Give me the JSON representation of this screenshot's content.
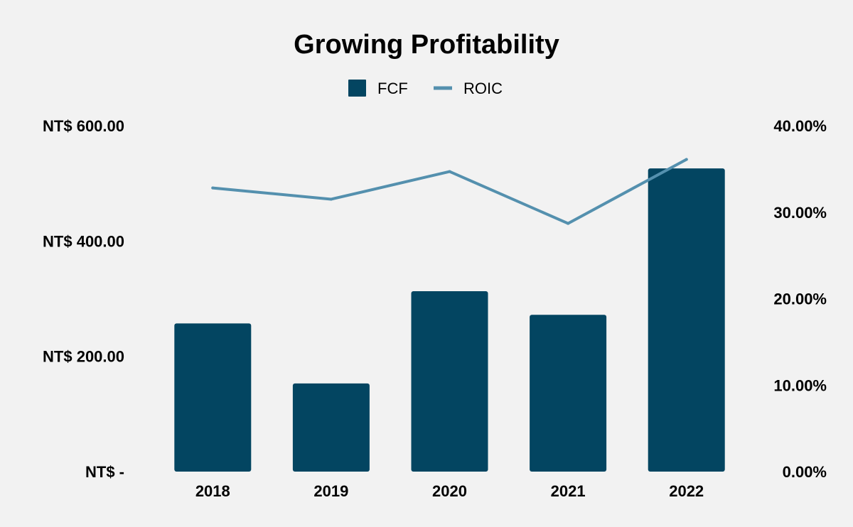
{
  "colors": {
    "background": "#f2f2f2",
    "bar": "#034561",
    "line": "#5490ae",
    "text": "#000000"
  },
  "chart_data": {
    "type": "bar",
    "title": "Growing Profitability",
    "categories": [
      "2018",
      "2019",
      "2020",
      "2021",
      "2022"
    ],
    "series": [
      {
        "name": "FCF",
        "type": "bar",
        "axis": "left",
        "values": [
          257,
          153,
          313,
          272,
          526
        ]
      },
      {
        "name": "ROIC",
        "type": "line",
        "axis": "right",
        "values": [
          0.328,
          0.315,
          0.347,
          0.287,
          0.361
        ]
      }
    ],
    "y_left": {
      "ylim": [
        0,
        600
      ],
      "ticks": [
        0,
        200,
        400,
        600
      ],
      "tick_labels": [
        "NT$ -",
        "NT$ 200.00",
        "NT$ 400.00",
        "NT$ 600.00"
      ]
    },
    "y_right": {
      "ylim": [
        0,
        0.4
      ],
      "ticks": [
        0,
        0.1,
        0.2,
        0.3,
        0.4
      ],
      "tick_labels": [
        "0.00%",
        "10.00%",
        "20.00%",
        "30.00%",
        "40.00%"
      ]
    },
    "legend": {
      "position": "top-center",
      "entries": [
        "FCF",
        "ROIC"
      ]
    },
    "grid": false
  }
}
